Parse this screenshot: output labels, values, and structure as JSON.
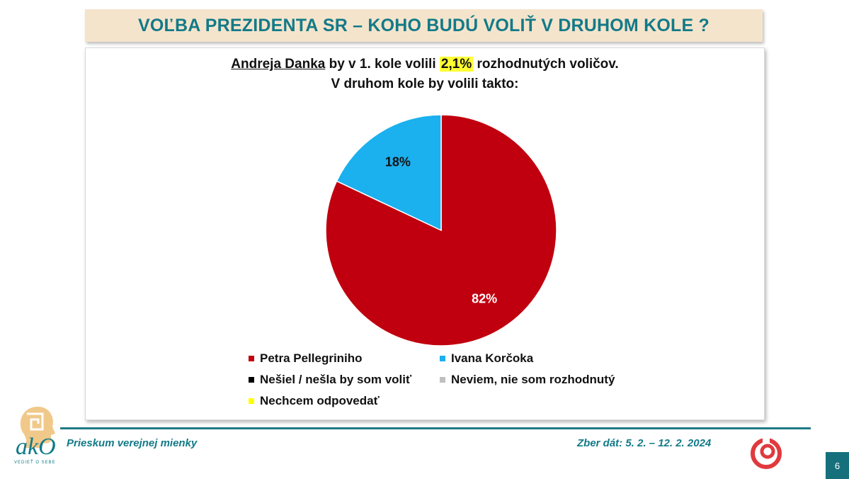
{
  "header": {
    "title": "VOĽBA PREZIDENTA SR – KOHO BUDÚ VOLIŤ V DRUHOM KOLE ?"
  },
  "subtitle": {
    "name": "Andreja Danka",
    "text_a": " by v 1. kole volili ",
    "highlight": "2,1%",
    "text_b": " rozhodnutých voličov.",
    "line2": "V druhom kole by volili takto:"
  },
  "chart_data": {
    "type": "pie",
    "title": "",
    "slices": [
      {
        "label": "Petra Pellegriniho",
        "value": 82,
        "display": "82%",
        "color": "#c0000f"
      },
      {
        "label": "Ivana Korčoka",
        "value": 18,
        "display": "18%",
        "color": "#1bb0ee"
      },
      {
        "label": "Nešiel / nešla by som voliť",
        "value": 0,
        "display": "",
        "color": "#000000"
      },
      {
        "label": "Neviem, nie som rozhodnutý",
        "value": 0,
        "display": "",
        "color": "#bfbfbf"
      },
      {
        "label": "Nechcem odpovedať",
        "value": 0,
        "display": "",
        "color": "#ffff00"
      }
    ],
    "legend_position": "bottom"
  },
  "footer": {
    "left": "Prieskum verejnej mienky",
    "right": "Zber dát: 5. 2. – 12. 2. 2024",
    "page_number": "6"
  },
  "logo": {
    "text": "akO",
    "tagline": "VEDIEŤ O SEBE"
  },
  "colors": {
    "accent": "#127a88",
    "title_bg": "#f5e4cc"
  }
}
